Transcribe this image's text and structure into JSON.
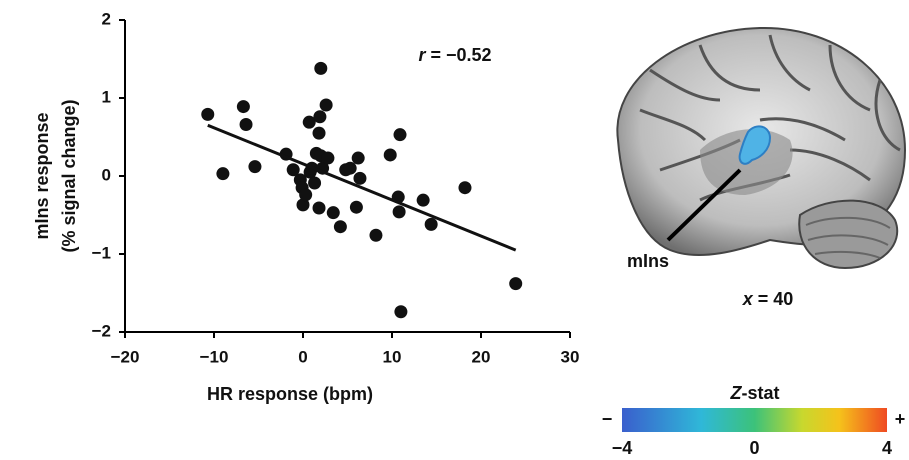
{
  "chart_data": {
    "type": "scatter",
    "x_label": "HR response (bpm)",
    "y_label": [
      "mIns response",
      "(% signal change)"
    ],
    "annotation": {
      "var": "r",
      "text": "= −0.52"
    },
    "x": [
      -10.7,
      -9.0,
      -6.7,
      -6.4,
      -5.4,
      -1.9,
      -1.1,
      -0.3,
      -0.1,
      0,
      0.3,
      0.8,
      0.7,
      1.0,
      1.3,
      1.5,
      1.8,
      1.9,
      2.0,
      2.0,
      2.2,
      1.8,
      2.6,
      2.8,
      3.4,
      4.2,
      4.8,
      5.3,
      6.0,
      6.2,
      6.4,
      8.2,
      9.8,
      10.7,
      10.8,
      10.9,
      11.0,
      13.5,
      14.4,
      18.2,
      23.9
    ],
    "values": [
      0.79,
      0.03,
      0.89,
      0.66,
      0.12,
      0.28,
      0.08,
      -0.05,
      -0.15,
      -0.37,
      -0.24,
      0.05,
      0.69,
      0.1,
      -0.09,
      0.29,
      0.55,
      0.76,
      1.38,
      0.26,
      0.1,
      -0.41,
      0.91,
      0.23,
      -0.47,
      -0.65,
      0.08,
      0.1,
      -0.4,
      0.23,
      -0.03,
      -0.76,
      0.27,
      -0.27,
      -0.46,
      0.53,
      -1.74,
      -0.31,
      -0.62,
      -0.15,
      -1.38
    ],
    "color": "#111111",
    "fit": {
      "x": [
        -10.7,
        23.9
      ],
      "y": [
        0.65,
        -0.95
      ]
    },
    "xlim": [
      -20,
      30
    ],
    "xticks": [
      {
        "value": -20,
        "label": "−20"
      },
      {
        "value": -10,
        "label": "−10"
      },
      0,
      10,
      20,
      30
    ],
    "ylim": [
      -2,
      2
    ],
    "yticks": [
      {
        "value": -2,
        "label": "−2"
      },
      {
        "value": -1,
        "label": "−1"
      },
      0,
      1,
      2
    ]
  },
  "brain_panel": {
    "region_label": "mIns",
    "slice_label": {
      "var": "x",
      "text": "= 40"
    },
    "colorbar": {
      "title": {
        "var": "Z",
        "text": "-stat"
      },
      "min_symbol": "−",
      "max_symbol": "+",
      "range": [
        -4,
        4
      ],
      "ticks": [
        {
          "value": -4,
          "label": "−4"
        },
        0,
        4
      ]
    }
  }
}
